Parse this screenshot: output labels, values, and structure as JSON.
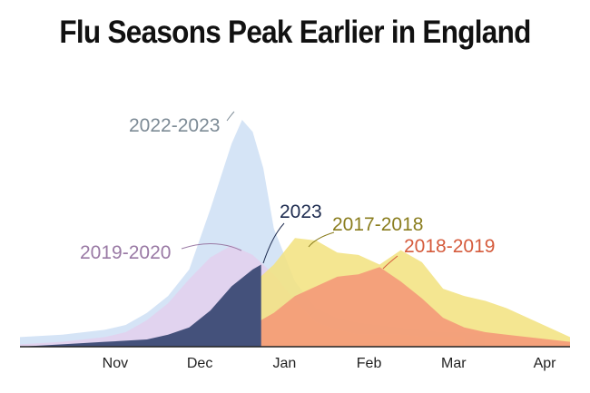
{
  "chart_data": {
    "type": "area",
    "title": "Flu Seasons Peak Earlier in England",
    "xlabel": "",
    "ylabel": "",
    "x_tick_labels": [
      "Nov",
      "Dec",
      "Jan",
      "Feb",
      "Mar",
      "Apr"
    ],
    "x_range_weeks": [
      0,
      26
    ],
    "y_range": [
      0,
      100
    ],
    "grid": false,
    "legend": "direct labels",
    "series": [
      {
        "name": "2022-2023",
        "color": "#cfe0f5",
        "label_color": "#7d8b96",
        "points": [
          [
            0,
            4
          ],
          [
            2,
            5
          ],
          [
            4,
            7
          ],
          [
            5,
            9
          ],
          [
            6,
            14
          ],
          [
            7,
            21
          ],
          [
            8,
            32
          ],
          [
            9,
            57
          ],
          [
            10,
            84
          ],
          [
            10.5,
            94
          ],
          [
            11,
            89
          ],
          [
            11.5,
            74
          ],
          [
            12,
            49
          ],
          [
            13,
            27
          ],
          [
            14,
            16
          ],
          [
            15,
            12
          ],
          [
            16,
            10
          ],
          [
            17,
            9
          ],
          [
            18,
            8
          ],
          [
            19,
            7
          ],
          [
            20,
            6
          ],
          [
            21,
            6
          ],
          [
            22,
            5
          ]
        ]
      },
      {
        "name": "2019-2020",
        "color": "#e3d0ee",
        "label_color": "#9a7aa5",
        "points": [
          [
            0,
            1
          ],
          [
            2,
            2
          ],
          [
            4,
            4
          ],
          [
            5,
            6
          ],
          [
            6,
            11
          ],
          [
            7,
            18
          ],
          [
            8,
            28
          ],
          [
            9,
            37
          ],
          [
            10,
            42
          ],
          [
            11,
            38
          ],
          [
            12,
            30
          ],
          [
            13,
            19
          ],
          [
            14,
            10
          ],
          [
            15,
            7
          ],
          [
            16,
            5
          ],
          [
            17,
            5
          ],
          [
            18,
            5
          ],
          [
            19,
            4
          ],
          [
            20,
            4
          ],
          [
            21,
            4
          ]
        ]
      },
      {
        "name": "2017-2018",
        "color": "#f3e382",
        "label_color": "#8a7d1e",
        "points": [
          [
            0,
            0
          ],
          [
            4,
            1
          ],
          [
            6,
            2
          ],
          [
            7,
            3
          ],
          [
            8,
            5
          ],
          [
            9,
            9
          ],
          [
            10,
            15
          ],
          [
            11,
            26
          ],
          [
            12,
            34
          ],
          [
            13,
            45
          ],
          [
            14,
            44
          ],
          [
            15,
            39
          ],
          [
            16,
            38
          ],
          [
            17,
            34
          ],
          [
            18,
            40
          ],
          [
            19,
            35
          ],
          [
            20,
            24
          ],
          [
            21,
            21
          ],
          [
            22,
            19
          ],
          [
            23,
            16
          ],
          [
            24,
            12
          ],
          [
            25,
            8
          ],
          [
            26,
            4
          ]
        ]
      },
      {
        "name": "2018-2019",
        "color": "#f49777",
        "label_color": "#d55b3c",
        "points": [
          [
            0,
            0
          ],
          [
            4,
            0
          ],
          [
            6,
            1
          ],
          [
            8,
            2
          ],
          [
            9,
            3
          ],
          [
            10,
            5
          ],
          [
            11,
            9
          ],
          [
            12,
            14
          ],
          [
            13,
            21
          ],
          [
            14,
            25
          ],
          [
            15,
            29
          ],
          [
            16,
            30
          ],
          [
            17,
            33
          ],
          [
            18,
            27
          ],
          [
            19,
            20
          ],
          [
            20,
            12
          ],
          [
            21,
            8
          ],
          [
            22,
            6
          ],
          [
            23,
            5
          ],
          [
            24,
            4
          ],
          [
            25,
            3
          ],
          [
            26,
            2
          ]
        ]
      },
      {
        "name": "2023",
        "color": "#44517b",
        "label_color": "#1e2c50",
        "points": [
          [
            0,
            0
          ],
          [
            2,
            1
          ],
          [
            4,
            2
          ],
          [
            6,
            3
          ],
          [
            7,
            5
          ],
          [
            8,
            8
          ],
          [
            9,
            15
          ],
          [
            10,
            25
          ],
          [
            11,
            32
          ],
          [
            11.4,
            34
          ]
        ]
      }
    ]
  }
}
